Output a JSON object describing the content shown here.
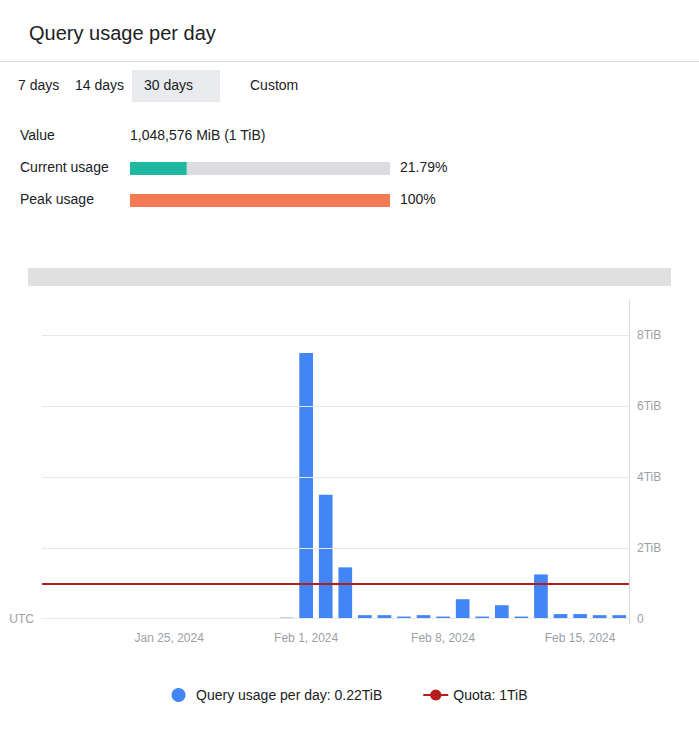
{
  "chart_data": {
    "type": "bar",
    "title": "Query usage per day",
    "buttons": [
      "7 days",
      "14 days",
      "30 days",
      "Custom"
    ],
    "selected_button": "30 days",
    "panel": [
      {
        "label": "Value",
        "text": "1,048,576 MiB (1 TiB)"
      }
    ],
    "usage": [
      {
        "label": "Current usage",
        "value": 21.79,
        "value_label": "21.79%",
        "color": "#1DB8A0"
      },
      {
        "label": "Peak usage",
        "value": 100,
        "value_label": "100%",
        "color": "#F47A55"
      }
    ],
    "xlabel": "UTC",
    "categories": [
      null,
      null,
      null,
      null,
      null,
      null,
      "Jan 25, 2024",
      null,
      null,
      null,
      null,
      null,
      null,
      "Feb 1, 2024",
      null,
      null,
      null,
      null,
      null,
      null,
      "Feb 8, 2024",
      null,
      null,
      null,
      null,
      null,
      null,
      "Feb 15, 2024",
      null,
      null
    ],
    "series": [
      {
        "name": "Query usage per day: 0.22TiB",
        "type": "bar",
        "color": "#4285F4",
        "values": [
          0.0,
          0.0,
          0.0,
          0.0,
          0.0,
          0.0,
          0.0,
          0.0,
          0.0,
          0.0,
          0.0,
          0.0,
          0.03,
          7.5,
          3.5,
          1.45,
          0.1,
          0.1,
          0.06,
          0.1,
          0.06,
          0.55,
          0.06,
          0.38,
          0.06,
          1.25,
          0.13,
          0.13,
          0.1,
          0.1
        ]
      },
      {
        "name": "Quota: 1TiB",
        "type": "hline",
        "color": "#B71C1C",
        "y": 1.0
      }
    ],
    "ylim": [
      -0.15,
      9.0
    ],
    "yticks": [
      0,
      {
        "value": 2,
        "label": "2TiB"
      },
      {
        "value": 4,
        "label": "4TiB"
      },
      {
        "value": 6,
        "label": "6TiB"
      },
      {
        "value": 8,
        "label": "8TiB"
      }
    ],
    "grid": true,
    "legend": "bottom"
  }
}
